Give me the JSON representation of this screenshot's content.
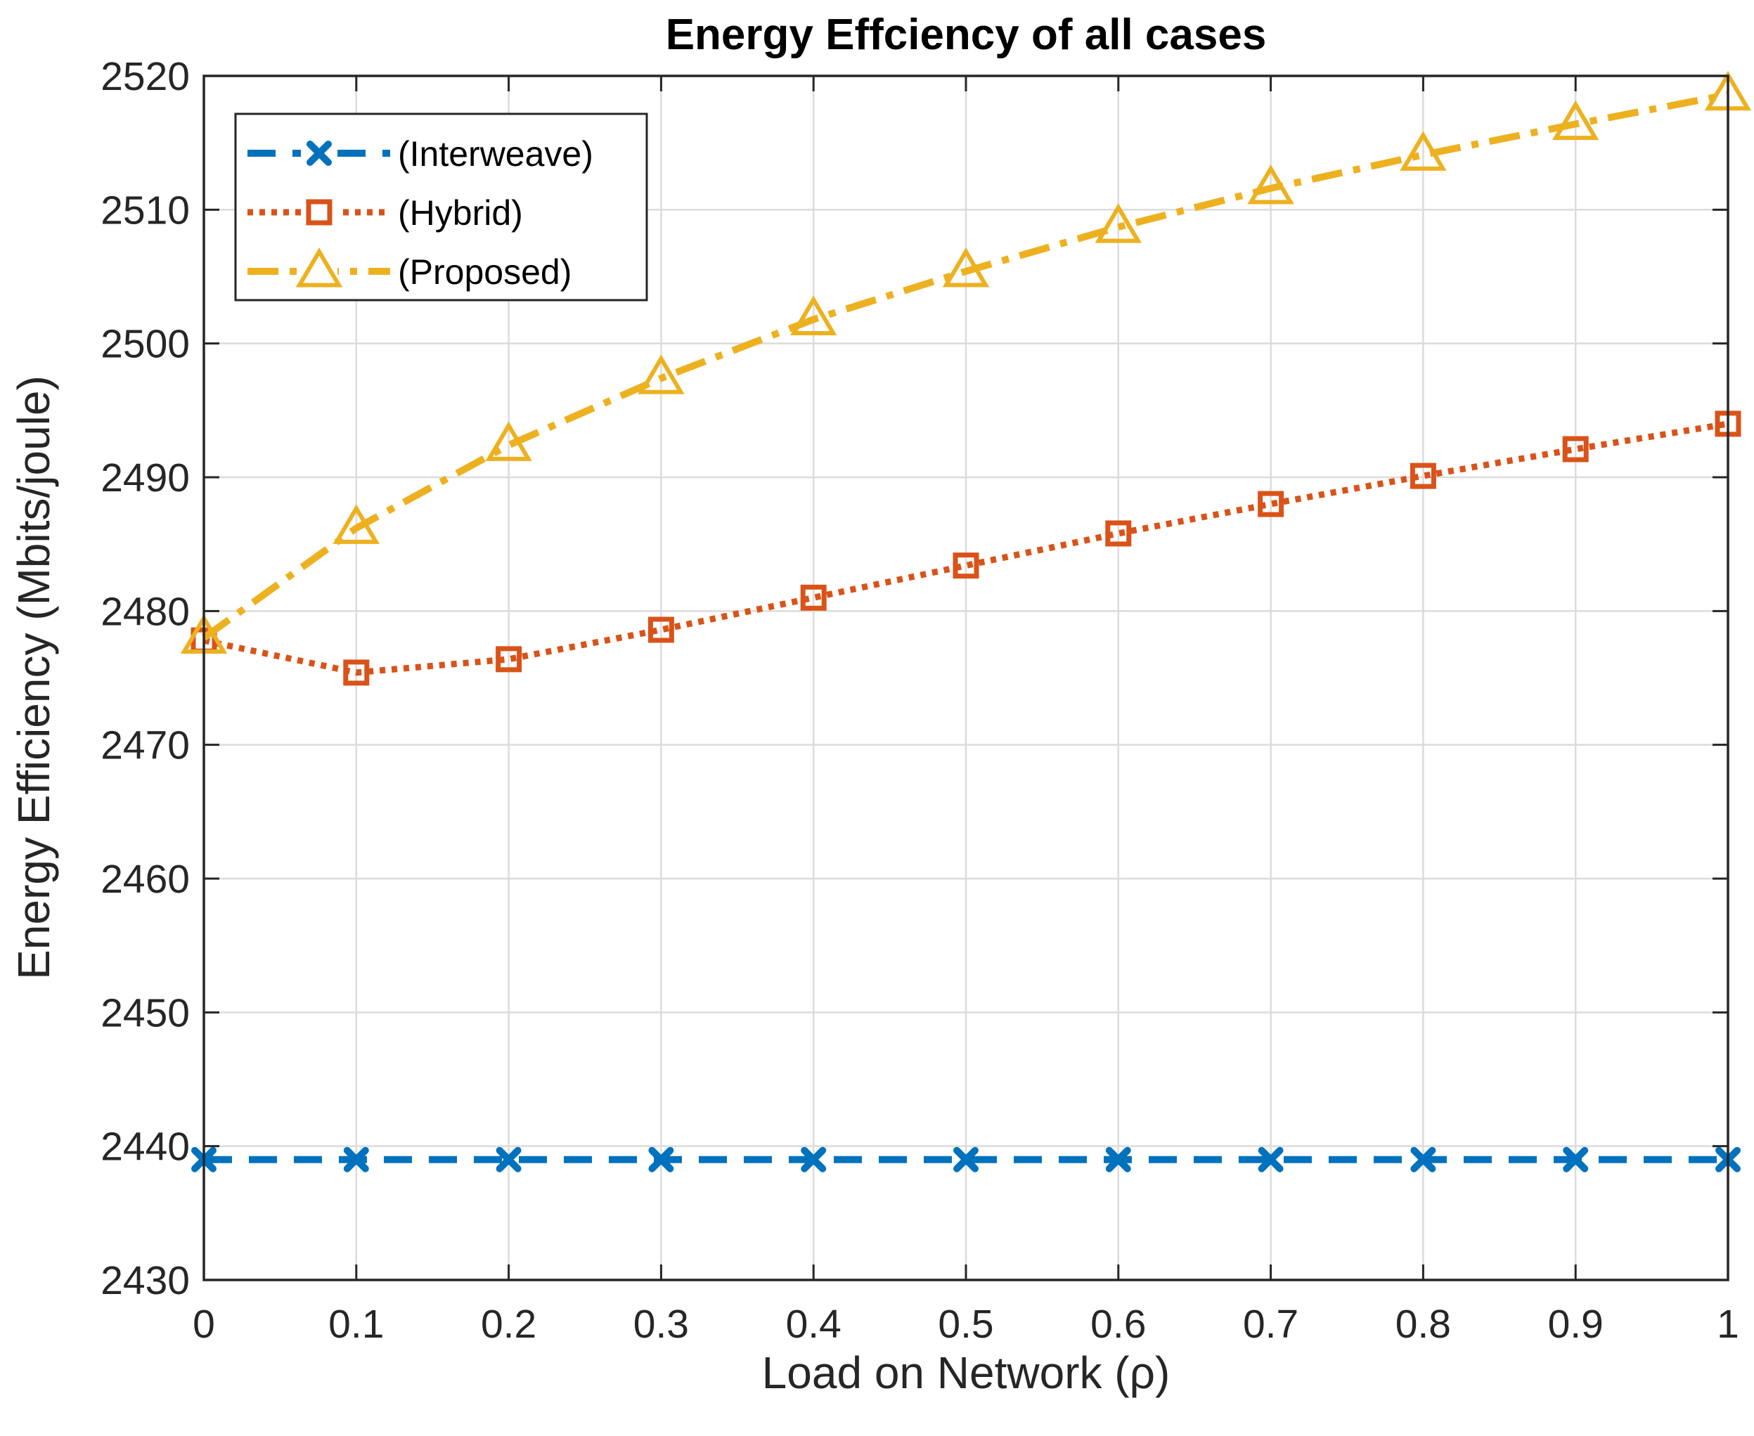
{
  "chart_data": {
    "type": "line",
    "title": "Energy Effciency of all cases",
    "xlabel": "Load on Network (ρ)",
    "ylabel": "Energy Efficiency (Mbits/joule)",
    "xlim": [
      0,
      1
    ],
    "ylim": [
      2430,
      2520
    ],
    "x_ticks": [
      0,
      0.1,
      0.2,
      0.3,
      0.4,
      0.5,
      0.6,
      0.7,
      0.8,
      0.9,
      1
    ],
    "x_tick_labels": [
      "0",
      "0.1",
      "0.2",
      "0.3",
      "0.4",
      "0.5",
      "0.6",
      "0.7",
      "0.8",
      "0.9",
      "1"
    ],
    "y_ticks": [
      2430,
      2440,
      2450,
      2460,
      2470,
      2480,
      2490,
      2500,
      2510,
      2520
    ],
    "y_tick_labels": [
      "2430",
      "2440",
      "2450",
      "2460",
      "2470",
      "2480",
      "2490",
      "2500",
      "2510",
      "2520"
    ],
    "grid": true,
    "legend_position": "top-left",
    "x": [
      0,
      0.1,
      0.2,
      0.3,
      0.4,
      0.5,
      0.6,
      0.7,
      0.8,
      0.9,
      1
    ],
    "series": [
      {
        "name": "(Interweave)",
        "color": "#0072BD",
        "line_style": "dashed",
        "marker": "x",
        "values": [
          2439,
          2439,
          2439,
          2439,
          2439,
          2439,
          2439,
          2439,
          2439,
          2439,
          2439
        ]
      },
      {
        "name": "(Hybrid)",
        "color": "#D95319",
        "line_style": "dotted",
        "marker": "square",
        "values": [
          2477.8,
          2475.4,
          2476.4,
          2478.6,
          2481.0,
          2483.4,
          2485.8,
          2488.0,
          2490.1,
          2492.1,
          2494.0
        ]
      },
      {
        "name": "(Proposed)",
        "color": "#EDB120",
        "line_style": "dash-dot",
        "marker": "triangle",
        "values": [
          2478.0,
          2486.2,
          2492.4,
          2497.4,
          2501.8,
          2505.4,
          2508.7,
          2511.6,
          2514.1,
          2516.4,
          2518.6
        ]
      }
    ]
  }
}
